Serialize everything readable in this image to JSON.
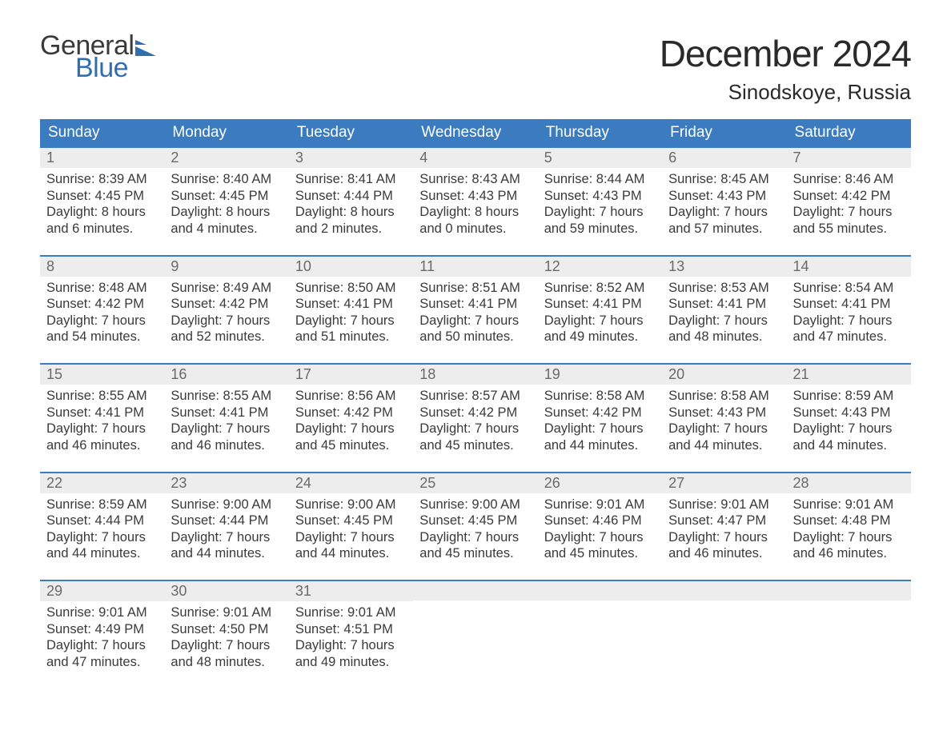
{
  "logo": {
    "text_top": "General",
    "text_bottom": "Blue",
    "flag_color": "#2f6fb0"
  },
  "title": "December 2024",
  "location": "Sinodskoye, Russia",
  "colors": {
    "header_bg": "#3b7bbf",
    "header_text": "#ffffff",
    "daynum_bg": "#ededed",
    "daynum_text": "#6a6a6a",
    "body_text": "#3a3a3a",
    "week_border": "#3b7bbf",
    "page_bg": "#ffffff"
  },
  "weekdays": [
    "Sunday",
    "Monday",
    "Tuesday",
    "Wednesday",
    "Thursday",
    "Friday",
    "Saturday"
  ],
  "weeks": [
    [
      {
        "n": "1",
        "sunrise": "8:39 AM",
        "sunset": "4:45 PM",
        "dl1": "Daylight: 8 hours",
        "dl2": "and 6 minutes."
      },
      {
        "n": "2",
        "sunrise": "8:40 AM",
        "sunset": "4:45 PM",
        "dl1": "Daylight: 8 hours",
        "dl2": "and 4 minutes."
      },
      {
        "n": "3",
        "sunrise": "8:41 AM",
        "sunset": "4:44 PM",
        "dl1": "Daylight: 8 hours",
        "dl2": "and 2 minutes."
      },
      {
        "n": "4",
        "sunrise": "8:43 AM",
        "sunset": "4:43 PM",
        "dl1": "Daylight: 8 hours",
        "dl2": "and 0 minutes."
      },
      {
        "n": "5",
        "sunrise": "8:44 AM",
        "sunset": "4:43 PM",
        "dl1": "Daylight: 7 hours",
        "dl2": "and 59 minutes."
      },
      {
        "n": "6",
        "sunrise": "8:45 AM",
        "sunset": "4:43 PM",
        "dl1": "Daylight: 7 hours",
        "dl2": "and 57 minutes."
      },
      {
        "n": "7",
        "sunrise": "8:46 AM",
        "sunset": "4:42 PM",
        "dl1": "Daylight: 7 hours",
        "dl2": "and 55 minutes."
      }
    ],
    [
      {
        "n": "8",
        "sunrise": "8:48 AM",
        "sunset": "4:42 PM",
        "dl1": "Daylight: 7 hours",
        "dl2": "and 54 minutes."
      },
      {
        "n": "9",
        "sunrise": "8:49 AM",
        "sunset": "4:42 PM",
        "dl1": "Daylight: 7 hours",
        "dl2": "and 52 minutes."
      },
      {
        "n": "10",
        "sunrise": "8:50 AM",
        "sunset": "4:41 PM",
        "dl1": "Daylight: 7 hours",
        "dl2": "and 51 minutes."
      },
      {
        "n": "11",
        "sunrise": "8:51 AM",
        "sunset": "4:41 PM",
        "dl1": "Daylight: 7 hours",
        "dl2": "and 50 minutes."
      },
      {
        "n": "12",
        "sunrise": "8:52 AM",
        "sunset": "4:41 PM",
        "dl1": "Daylight: 7 hours",
        "dl2": "and 49 minutes."
      },
      {
        "n": "13",
        "sunrise": "8:53 AM",
        "sunset": "4:41 PM",
        "dl1": "Daylight: 7 hours",
        "dl2": "and 48 minutes."
      },
      {
        "n": "14",
        "sunrise": "8:54 AM",
        "sunset": "4:41 PM",
        "dl1": "Daylight: 7 hours",
        "dl2": "and 47 minutes."
      }
    ],
    [
      {
        "n": "15",
        "sunrise": "8:55 AM",
        "sunset": "4:41 PM",
        "dl1": "Daylight: 7 hours",
        "dl2": "and 46 minutes."
      },
      {
        "n": "16",
        "sunrise": "8:55 AM",
        "sunset": "4:41 PM",
        "dl1": "Daylight: 7 hours",
        "dl2": "and 46 minutes."
      },
      {
        "n": "17",
        "sunrise": "8:56 AM",
        "sunset": "4:42 PM",
        "dl1": "Daylight: 7 hours",
        "dl2": "and 45 minutes."
      },
      {
        "n": "18",
        "sunrise": "8:57 AM",
        "sunset": "4:42 PM",
        "dl1": "Daylight: 7 hours",
        "dl2": "and 45 minutes."
      },
      {
        "n": "19",
        "sunrise": "8:58 AM",
        "sunset": "4:42 PM",
        "dl1": "Daylight: 7 hours",
        "dl2": "and 44 minutes."
      },
      {
        "n": "20",
        "sunrise": "8:58 AM",
        "sunset": "4:43 PM",
        "dl1": "Daylight: 7 hours",
        "dl2": "and 44 minutes."
      },
      {
        "n": "21",
        "sunrise": "8:59 AM",
        "sunset": "4:43 PM",
        "dl1": "Daylight: 7 hours",
        "dl2": "and 44 minutes."
      }
    ],
    [
      {
        "n": "22",
        "sunrise": "8:59 AM",
        "sunset": "4:44 PM",
        "dl1": "Daylight: 7 hours",
        "dl2": "and 44 minutes."
      },
      {
        "n": "23",
        "sunrise": "9:00 AM",
        "sunset": "4:44 PM",
        "dl1": "Daylight: 7 hours",
        "dl2": "and 44 minutes."
      },
      {
        "n": "24",
        "sunrise": "9:00 AM",
        "sunset": "4:45 PM",
        "dl1": "Daylight: 7 hours",
        "dl2": "and 44 minutes."
      },
      {
        "n": "25",
        "sunrise": "9:00 AM",
        "sunset": "4:45 PM",
        "dl1": "Daylight: 7 hours",
        "dl2": "and 45 minutes."
      },
      {
        "n": "26",
        "sunrise": "9:01 AM",
        "sunset": "4:46 PM",
        "dl1": "Daylight: 7 hours",
        "dl2": "and 45 minutes."
      },
      {
        "n": "27",
        "sunrise": "9:01 AM",
        "sunset": "4:47 PM",
        "dl1": "Daylight: 7 hours",
        "dl2": "and 46 minutes."
      },
      {
        "n": "28",
        "sunrise": "9:01 AM",
        "sunset": "4:48 PM",
        "dl1": "Daylight: 7 hours",
        "dl2": "and 46 minutes."
      }
    ],
    [
      {
        "n": "29",
        "sunrise": "9:01 AM",
        "sunset": "4:49 PM",
        "dl1": "Daylight: 7 hours",
        "dl2": "and 47 minutes."
      },
      {
        "n": "30",
        "sunrise": "9:01 AM",
        "sunset": "4:50 PM",
        "dl1": "Daylight: 7 hours",
        "dl2": "and 48 minutes."
      },
      {
        "n": "31",
        "sunrise": "9:01 AM",
        "sunset": "4:51 PM",
        "dl1": "Daylight: 7 hours",
        "dl2": "and 49 minutes."
      },
      null,
      null,
      null,
      null
    ]
  ],
  "labels": {
    "sunrise_prefix": "Sunrise: ",
    "sunset_prefix": "Sunset: "
  }
}
